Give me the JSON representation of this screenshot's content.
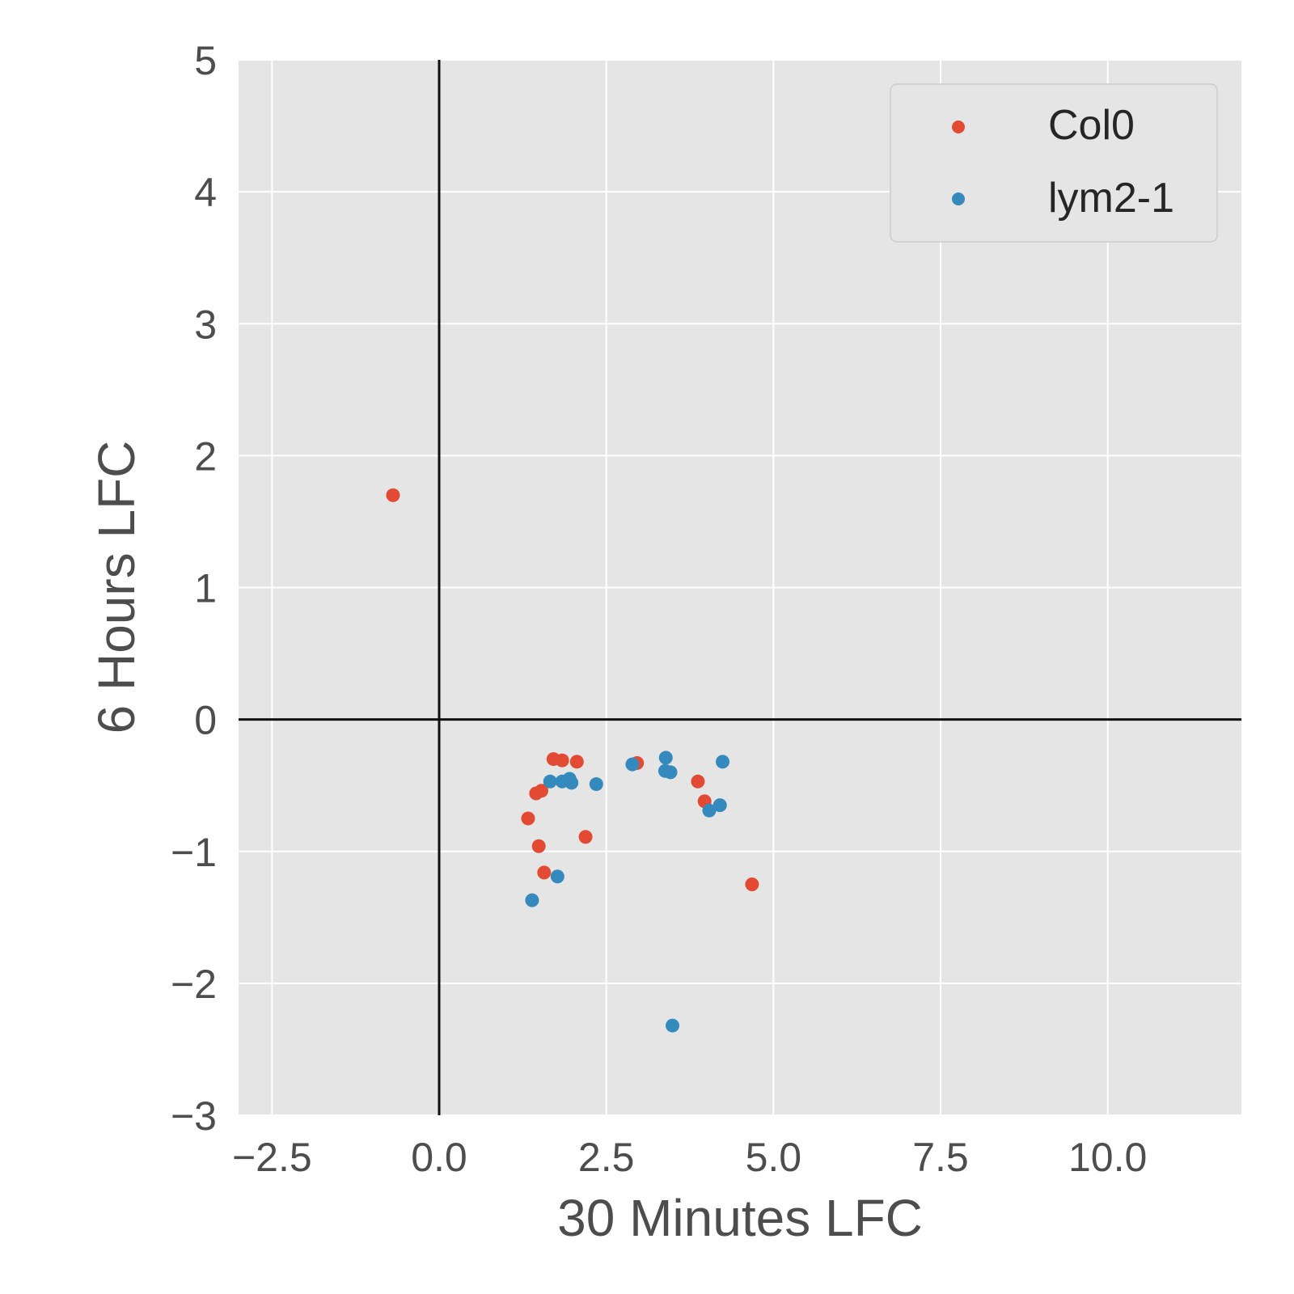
{
  "chart_data": {
    "type": "scatter",
    "title": "",
    "xlabel": "30 Minutes LFC",
    "ylabel": "6 Hours LFC",
    "xlim": [
      -3,
      12
    ],
    "ylim": [
      -3,
      5
    ],
    "x_ticks": [
      -2.5,
      0.0,
      2.5,
      5.0,
      7.5,
      10.0
    ],
    "x_tick_labels": [
      "−2.5",
      "0.0",
      "2.5",
      "5.0",
      "7.5",
      "10.0"
    ],
    "y_ticks": [
      -3,
      -2,
      -1,
      0,
      1,
      2,
      3,
      4,
      5
    ],
    "y_tick_labels": [
      "−3",
      "−2",
      "−1",
      "0",
      "1",
      "2",
      "3",
      "4",
      "5"
    ],
    "grid": true,
    "reference_lines": {
      "x": 0,
      "y": 0
    },
    "legend_position": "top-right",
    "background_color": "#e5e5e5",
    "series": [
      {
        "name": "Col0",
        "color": "#e24a33",
        "points": [
          [
            -0.69,
            1.7
          ],
          [
            1.71,
            -0.3
          ],
          [
            1.84,
            -0.31
          ],
          [
            2.06,
            -0.32
          ],
          [
            1.45,
            -0.56
          ],
          [
            1.53,
            -0.54
          ],
          [
            1.33,
            -0.75
          ],
          [
            1.49,
            -0.96
          ],
          [
            1.57,
            -1.16
          ],
          [
            2.19,
            -0.89
          ],
          [
            2.96,
            -0.33
          ],
          [
            3.87,
            -0.47
          ],
          [
            3.97,
            -0.62
          ],
          [
            4.68,
            -1.25
          ]
        ]
      },
      {
        "name": "lym2-1",
        "color": "#348abd",
        "points": [
          [
            1.66,
            -0.47
          ],
          [
            1.84,
            -0.47
          ],
          [
            1.95,
            -0.45
          ],
          [
            1.98,
            -0.48
          ],
          [
            2.35,
            -0.49
          ],
          [
            2.89,
            -0.34
          ],
          [
            3.39,
            -0.29
          ],
          [
            3.38,
            -0.39
          ],
          [
            3.46,
            -0.4
          ],
          [
            4.24,
            -0.32
          ],
          [
            4.2,
            -0.65
          ],
          [
            4.04,
            -0.69
          ],
          [
            1.77,
            -1.19
          ],
          [
            1.39,
            -1.37
          ],
          [
            3.49,
            -2.32
          ]
        ]
      }
    ]
  }
}
